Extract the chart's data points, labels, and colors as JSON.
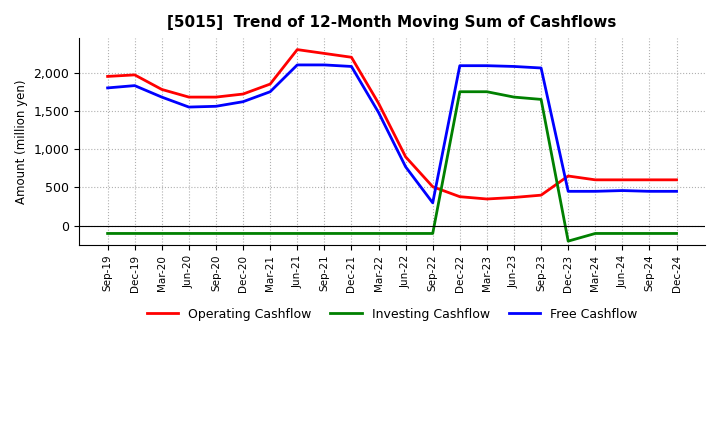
{
  "title": "[5015]  Trend of 12-Month Moving Sum of Cashflows",
  "ylabel": "Amount (million yen)",
  "legend": [
    "Operating Cashflow",
    "Investing Cashflow",
    "Free Cashflow"
  ],
  "line_colors": [
    "#ff0000",
    "#008000",
    "#0000ff"
  ],
  "x_labels": [
    "Sep-19",
    "Dec-19",
    "Mar-20",
    "Jun-20",
    "Sep-20",
    "Dec-20",
    "Mar-21",
    "Jun-21",
    "Sep-21",
    "Dec-21",
    "Mar-22",
    "Jun-22",
    "Sep-22",
    "Dec-22",
    "Mar-23",
    "Jun-23",
    "Sep-23",
    "Dec-23",
    "Mar-24",
    "Jun-24",
    "Sep-24",
    "Dec-24"
  ],
  "operating": [
    1950,
    1970,
    1780,
    1680,
    1680,
    1720,
    1850,
    2300,
    2250,
    2200,
    1600,
    900,
    510,
    380,
    350,
    370,
    400,
    650,
    600,
    600,
    600,
    600
  ],
  "investing": [
    -100,
    -100,
    -100,
    -100,
    -100,
    -100,
    -100,
    -100,
    -100,
    -100,
    -100,
    -100,
    -100,
    1750,
    1750,
    1680,
    1650,
    -200,
    -100,
    -100,
    -100,
    -100
  ],
  "free": [
    1800,
    1830,
    1680,
    1550,
    1560,
    1620,
    1750,
    2100,
    2100,
    2080,
    1480,
    770,
    300,
    2090,
    2090,
    2080,
    2060,
    450,
    450,
    460,
    450,
    450
  ],
  "ylim": [
    -250,
    2450
  ],
  "yticks": [
    0,
    500,
    1000,
    1500,
    2000
  ],
  "background_color": "#ffffff",
  "grid_color": "#b0b0b0",
  "linewidth": 2.0
}
